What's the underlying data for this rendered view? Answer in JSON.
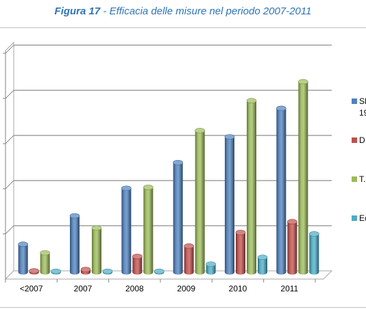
{
  "caption": {
    "figure": "Figura 17",
    "separator": " - ",
    "text": "Efficacia delle misure nel periodo 2007-2011"
  },
  "chart_data": {
    "type": "bar",
    "style": "3d-clustered-cylinder",
    "categories": [
      "<2007",
      "2007",
      "2008",
      "2009",
      "2010",
      "2011"
    ],
    "ylim": [
      0,
      5
    ],
    "grid": true,
    "legend": "right",
    "series": [
      {
        "name": "Sl",
        "name_line2": "19",
        "color": "#4f81bd",
        "values": [
          0.62,
          1.25,
          1.86,
          2.43,
          3.0,
          3.63
        ]
      },
      {
        "name": "D",
        "color": "#c0504d",
        "values": [
          0.03,
          0.06,
          0.35,
          0.58,
          0.88,
          1.12
        ]
      },
      {
        "name": "T.",
        "color": "#9bbb59",
        "values": [
          0.43,
          0.98,
          1.88,
          3.14,
          3.8,
          4.22
        ]
      },
      {
        "name": "Ec",
        "color": "#4bacc6",
        "values": [
          0.02,
          0.02,
          0.02,
          0.18,
          0.33,
          0.85
        ]
      }
    ]
  }
}
